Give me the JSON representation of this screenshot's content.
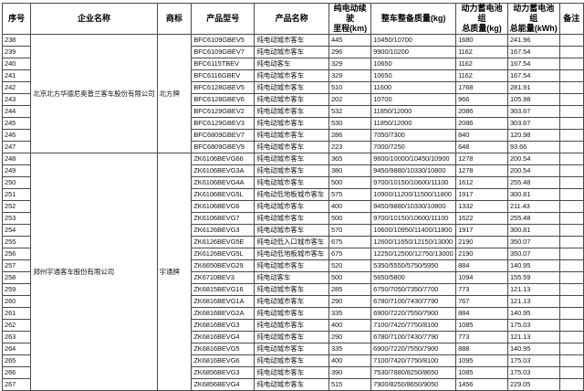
{
  "colors": {
    "border": "#4a4a4a",
    "text": "#141414",
    "background": "#ffffff"
  },
  "table": {
    "headers": [
      "序号",
      "企业名称",
      "商标",
      "产品型号",
      "产品名称",
      "纯电动续驶\n里程(km)",
      "整车整备质量(kg)",
      "动力蓄电池组\n总质量(kg)",
      "动力蓄电池组\n总能量(kWh)",
      "备注"
    ],
    "groups": [
      {
        "company": "北京北方华德尼奥普兰客车股份有限公司",
        "brand": "北方牌",
        "rows": [
          {
            "no": "238",
            "model": "BFC6109GBEV5",
            "name": "纯电动城市客车",
            "range": "445",
            "mass": "10450/10700",
            "battery_mass": "1680",
            "energy": "241.96",
            "remark": ""
          },
          {
            "no": "239",
            "model": "BFC6109GBEV7",
            "name": "纯电动城市客车",
            "range": "296",
            "mass": "9900/10200",
            "battery_mass": "1162",
            "energy": "167.54",
            "remark": ""
          },
          {
            "no": "240",
            "model": "BFC6115TBEV",
            "name": "纯电动客车",
            "range": "329",
            "mass": "10650",
            "battery_mass": "1162",
            "energy": "167.54",
            "remark": ""
          },
          {
            "no": "241",
            "model": "BFC6116GBEV",
            "name": "纯电动城市客车",
            "range": "329",
            "mass": "10650",
            "battery_mass": "1162",
            "energy": "167.54",
            "remark": ""
          },
          {
            "no": "242",
            "model": "BFC6128GBEV5",
            "name": "纯电动城市客车",
            "range": "510",
            "mass": "11600",
            "battery_mass": "1768",
            "energy": "281.91",
            "remark": ""
          },
          {
            "no": "243",
            "model": "BFC6128GBEV6",
            "name": "纯电动城市客车",
            "range": "202",
            "mass": "10700",
            "battery_mass": "966",
            "energy": "105.98",
            "remark": ""
          },
          {
            "no": "244",
            "model": "BFC6129GBEV2",
            "name": "纯电动城市客车",
            "range": "532",
            "mass": "11850/12000",
            "battery_mass": "2086",
            "energy": "303.67",
            "remark": ""
          },
          {
            "no": "245",
            "model": "BFC6129GBEV3",
            "name": "纯电动城市客车",
            "range": "530",
            "mass": "11850/12000",
            "battery_mass": "2086",
            "energy": "303.67",
            "remark": ""
          },
          {
            "no": "246",
            "model": "BFC6809GBEV7",
            "name": "纯电动城市客车",
            "range": "286",
            "mass": "7050/7300",
            "battery_mass": "840",
            "energy": "120.98",
            "remark": ""
          },
          {
            "no": "247",
            "model": "BFC6809GBEV9",
            "name": "纯电动城市客车",
            "range": "223",
            "mass": "7000/7250",
            "battery_mass": "648",
            "energy": "93.66",
            "remark": ""
          }
        ]
      },
      {
        "company": "郑州宇通客车股份有限公司",
        "brand": "宇通牌",
        "rows": [
          {
            "no": "248",
            "model": "ZK6106BEVG66",
            "name": "纯电动城市客车",
            "range": "365",
            "mass": "9600/10000/10450/10900",
            "battery_mass": "1278",
            "energy": "200.54",
            "remark": ""
          },
          {
            "no": "249",
            "model": "ZK6106BEVG3A",
            "name": "纯电动城市客车",
            "range": "380",
            "mass": "9450/9880/10330/10800",
            "battery_mass": "1278",
            "energy": "200.54",
            "remark": ""
          },
          {
            "no": "250",
            "model": "ZK6106BEVG4A",
            "name": "纯电动城市客车",
            "range": "500",
            "mass": "9700/10150/10600/11100",
            "battery_mass": "1612",
            "energy": "255.48",
            "remark": ""
          },
          {
            "no": "251",
            "model": "ZK6106BEVG5L",
            "name": "纯电动低地板城市客车",
            "range": "575",
            "mass": "10900/11200/11500/11800",
            "battery_mass": "1917",
            "energy": "300.81",
            "remark": ""
          },
          {
            "no": "252",
            "model": "ZK6106BEVG6",
            "name": "纯电动城市客车",
            "range": "400",
            "mass": "9450/9880/10330/10800",
            "battery_mass": "1332",
            "energy": "211.43",
            "remark": ""
          },
          {
            "no": "253",
            "model": "ZK6106BEVG7",
            "name": "纯电动城市客车",
            "range": "500",
            "mass": "9700/10150/10600/11100",
            "battery_mass": "1622",
            "energy": "255.48",
            "remark": ""
          },
          {
            "no": "254",
            "model": "ZK6126BEVG3",
            "name": "纯电动城市客车",
            "range": "570",
            "mass": "10600/10950/11400/11800",
            "battery_mass": "1917",
            "energy": "300.81",
            "remark": ""
          },
          {
            "no": "255",
            "model": "ZK6126BEVG5E",
            "name": "纯电动低入口城市客车",
            "range": "675",
            "mass": "12600/11650/12150/13000",
            "battery_mass": "2190",
            "energy": "350.07",
            "remark": ""
          },
          {
            "no": "256",
            "model": "ZK6126BEVG5L",
            "name": "纯电动低地板城市客车",
            "range": "675",
            "mass": "12250/12500/12750/13000",
            "battery_mass": "2190",
            "energy": "350.07",
            "remark": ""
          },
          {
            "no": "257",
            "model": "ZK6650BEVG29",
            "name": "纯电动城市客车",
            "range": "520",
            "mass": "5350/5550/5750/5950",
            "battery_mass": "884",
            "energy": "140.95",
            "remark": ""
          },
          {
            "no": "258",
            "model": "ZK6710BEV3",
            "name": "纯电动客车",
            "range": "500",
            "mass": "5650/5800",
            "battery_mass": "1094",
            "energy": "155.59",
            "remark": ""
          },
          {
            "no": "259",
            "model": "ZK6815BEVG16",
            "name": "纯电动城市客车",
            "range": "285",
            "mass": "6750/7050/7350/7700",
            "battery_mass": "773",
            "energy": "121.13",
            "remark": ""
          },
          {
            "no": "260",
            "model": "ZK6816BEVG1A",
            "name": "纯电动城市客车",
            "range": "290",
            "mass": "6780/7100/7430/7790",
            "battery_mass": "767",
            "energy": "121.13",
            "remark": ""
          },
          {
            "no": "261",
            "model": "ZK6816BEVG2A",
            "name": "纯电动城市客车",
            "range": "335",
            "mass": "6900/7220/7550/7900",
            "battery_mass": "884",
            "energy": "140.95",
            "remark": ""
          },
          {
            "no": "262",
            "model": "ZK6816BEVG3",
            "name": "纯电动城市客车",
            "range": "400",
            "mass": "7100/7420/7750/8100",
            "battery_mass": "1085",
            "energy": "175.03",
            "remark": ""
          },
          {
            "no": "263",
            "model": "ZK6816BEVG4",
            "name": "纯电动城市客车",
            "range": "290",
            "mass": "6780/7100/7430/7790",
            "battery_mass": "773",
            "energy": "121.13",
            "remark": ""
          },
          {
            "no": "264",
            "model": "ZK6816BEVG5",
            "name": "纯电动城市客车",
            "range": "335",
            "mass": "6900/7220/7550/7900",
            "battery_mass": "888",
            "energy": "140.95",
            "remark": ""
          },
          {
            "no": "265",
            "model": "ZK6816BEVG6",
            "name": "纯电动城市客车",
            "range": "400",
            "mass": "7100/7420/7750/8100",
            "battery_mass": "1095",
            "energy": "175.03",
            "remark": ""
          },
          {
            "no": "266",
            "model": "ZK6856BEVG3",
            "name": "纯电动城市客车",
            "range": "390",
            "mass": "7530/7880/8250/8650",
            "battery_mass": "1085",
            "energy": "175.03",
            "remark": ""
          },
          {
            "no": "267",
            "model": "ZK6856BEVG4",
            "name": "纯电动城市客车",
            "range": "515",
            "mass": "7900/8250/8650/9050",
            "battery_mass": "1456",
            "energy": "229.05",
            "remark": ""
          }
        ]
      }
    ]
  }
}
